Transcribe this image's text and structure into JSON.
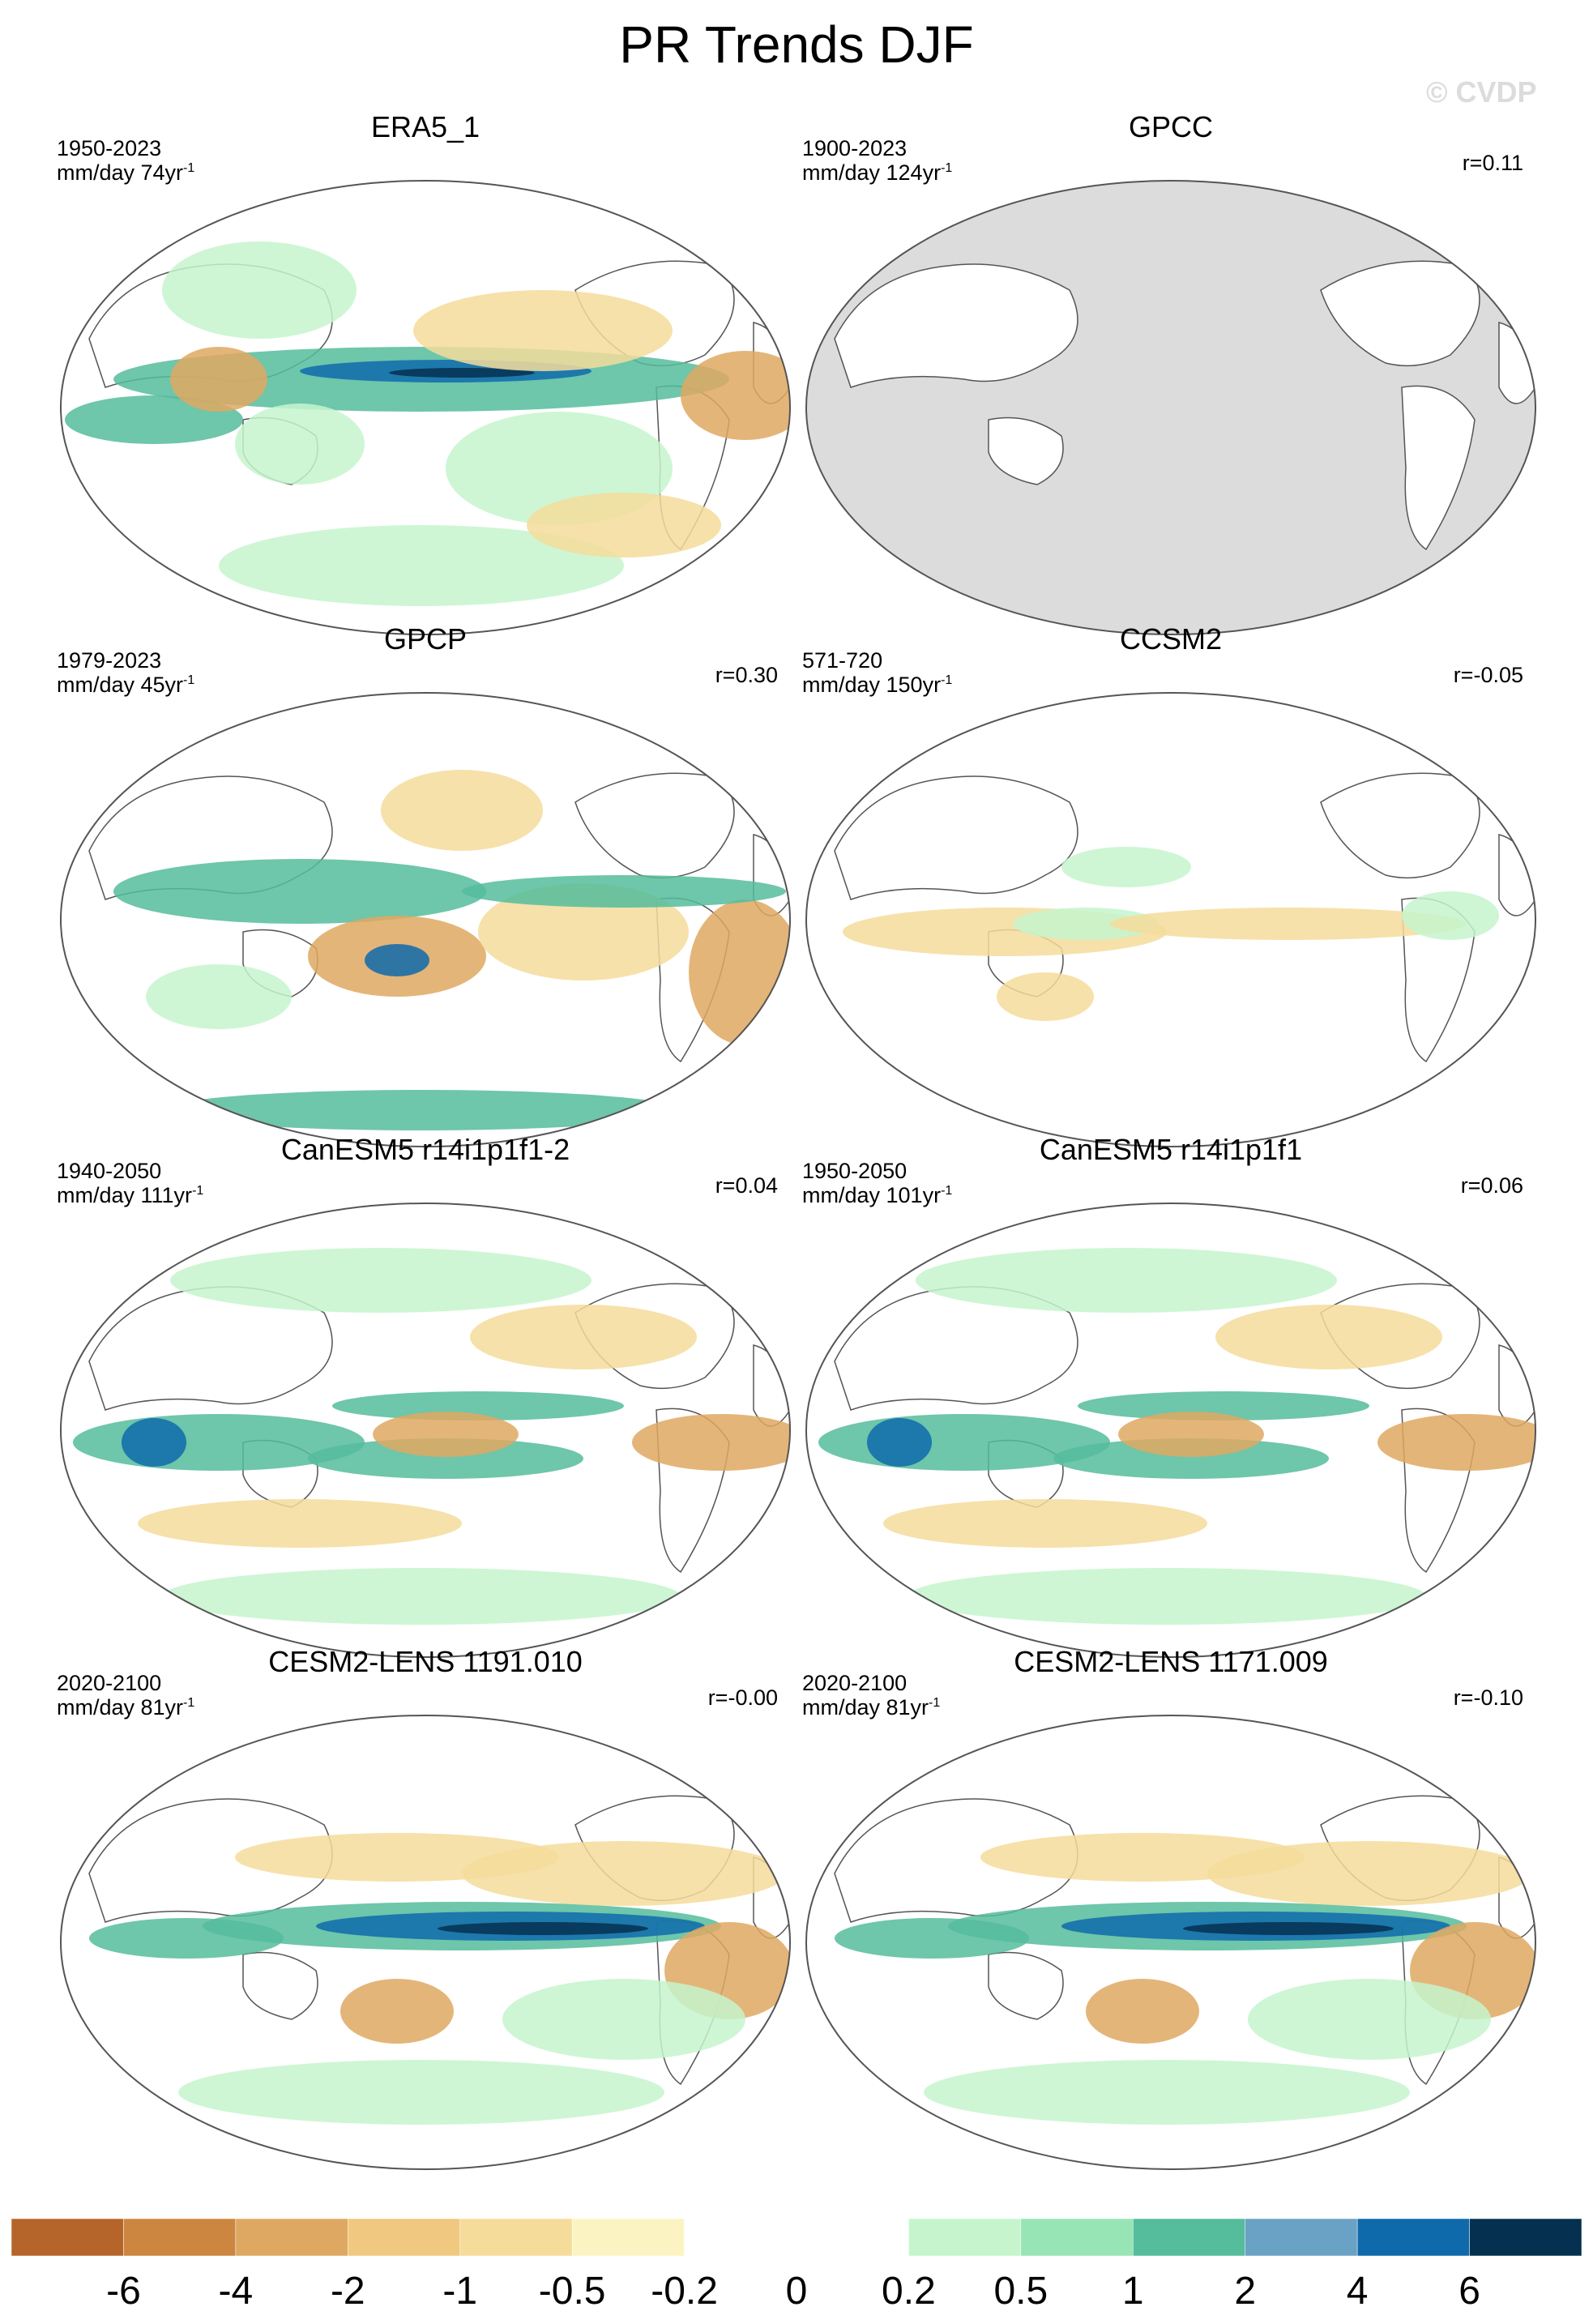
{
  "page": {
    "title": "PR Trends DJF",
    "watermark": "© CVDP"
  },
  "panels": [
    {
      "title": "ERA5_1",
      "years": "1950-2023",
      "units": "mm/day 74yr",
      "units_exp": "-1",
      "corr": "",
      "masked_ocean": false,
      "pattern": "era5"
    },
    {
      "title": "GPCC",
      "years": "1900-2023",
      "units": "mm/day 124yr",
      "units_exp": "-1",
      "corr": "r=0.11",
      "masked_ocean": true,
      "pattern": "gpcc"
    },
    {
      "title": "GPCP",
      "years": "1979-2023",
      "units": "mm/day 45yr",
      "units_exp": "-1",
      "corr": "r=0.30",
      "masked_ocean": false,
      "pattern": "gpcp"
    },
    {
      "title": "CCSM2",
      "years": "571-720",
      "units": "mm/day 150yr",
      "units_exp": "-1",
      "corr": "r=-0.05",
      "masked_ocean": false,
      "pattern": "ccsm2"
    },
    {
      "title": "CanESM5 r14i1p1f1-2",
      "years": "1940-2050",
      "units": "mm/day 111yr",
      "units_exp": "-1",
      "corr": "r=0.04",
      "masked_ocean": false,
      "pattern": "canesm"
    },
    {
      "title": "CanESM5 r14i1p1f1",
      "years": "1950-2050",
      "units": "mm/day 101yr",
      "units_exp": "-1",
      "corr": "r=0.06",
      "masked_ocean": false,
      "pattern": "canesm"
    },
    {
      "title": "CESM2-LENS 1191.010",
      "years": "2020-2100",
      "units": "mm/day 81yr",
      "units_exp": "-1",
      "corr": "r=-0.00",
      "masked_ocean": false,
      "pattern": "cesm"
    },
    {
      "title": "CESM2-LENS 1171.009",
      "years": "2020-2100",
      "units": "mm/day 81yr",
      "units_exp": "-1",
      "corr": "r=-0.10",
      "masked_ocean": false,
      "pattern": "cesm"
    }
  ],
  "colorbar": {
    "colors": [
      "#b5652a",
      "#cd8640",
      "#df a862",
      "#f0c87f",
      "#f5dc9b",
      "#fbf4c2",
      "#ffffff",
      "#ffffff",
      "#c6f5cd",
      "#97e5b5",
      "#55bc9c",
      "#6aa2c6",
      "#0f6aac",
      "#05304f"
    ],
    "labels": [
      "-6",
      "-4",
      "-2",
      "-1",
      "-0.5",
      "-0.2",
      "0",
      "0.2",
      "0.5",
      "1",
      "2",
      "4",
      "6"
    ]
  },
  "legend_colors": {
    "strong_dry": "#b5652a",
    "dry": "#df a862",
    "weak_dry": "#f5dc9b",
    "weak_wet": "#c6f5cd",
    "wet": "#55bc9c",
    "very_wet": "#0f6aac",
    "extreme_wet": "#05304f",
    "masked": "#dcdcdc"
  }
}
